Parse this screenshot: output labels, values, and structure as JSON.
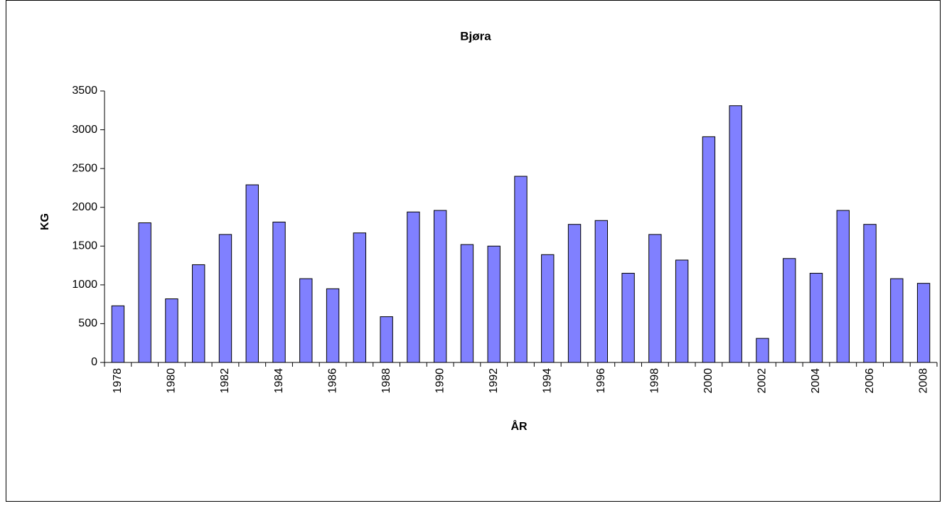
{
  "chart_data": {
    "type": "bar",
    "title": "Bjøra",
    "x_label": "ÅR",
    "y_label": "KG",
    "categories": [
      "1978",
      null,
      "1980",
      null,
      "1982",
      null,
      "1984",
      null,
      "1986",
      null,
      "1988",
      null,
      "1990",
      null,
      "1992",
      null,
      "1994",
      null,
      "1996",
      null,
      "1998",
      null,
      "2000",
      null,
      "2002",
      null,
      "2004",
      null,
      "2006",
      null,
      "2008"
    ],
    "values": [
      730,
      1800,
      820,
      1260,
      1650,
      2290,
      1810,
      1080,
      950,
      1670,
      590,
      1940,
      1960,
      1520,
      1500,
      2400,
      1390,
      1780,
      1830,
      1150,
      1650,
      1320,
      2910,
      3310,
      310,
      1340,
      1150,
      1960,
      1780,
      1080,
      1020
    ],
    "color": "#8080ff",
    "ylim": [
      0,
      3500
    ],
    "yticks": [
      0,
      500,
      1000,
      1500,
      2000,
      2500,
      3000,
      3500
    ],
    "grid": false
  }
}
